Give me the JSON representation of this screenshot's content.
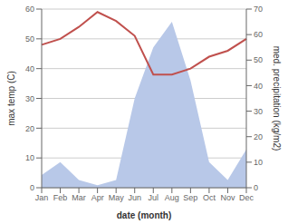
{
  "chart_data": {
    "type": "line",
    "xlabel": "date (month)",
    "ylabel": "max temp (C)",
    "y2label": "med. precipitation (kg/m2)",
    "categories": [
      "Jan",
      "Feb",
      "Mar",
      "Apr",
      "May",
      "Jun",
      "Jul",
      "Aug",
      "Sep",
      "Oct",
      "Nov",
      "Dec"
    ],
    "series": [
      {
        "type": "area",
        "axis": "y2",
        "color": "#b8c8e8",
        "values": [
          5,
          10,
          3,
          1,
          3,
          35,
          55,
          65,
          42,
          10,
          3,
          15
        ]
      },
      {
        "type": "line",
        "color": "#c0504d",
        "values": [
          48,
          50,
          54,
          59,
          56,
          51,
          38,
          38,
          40,
          44,
          46,
          50
        ]
      }
    ],
    "ylim": [
      0,
      60
    ],
    "yticks": [
      0,
      10,
      20,
      30,
      40,
      50,
      60
    ],
    "y2lim": [
      0,
      70
    ],
    "y2ticks": [
      0,
      10,
      20,
      30,
      40,
      50,
      60,
      70
    ],
    "grid": "y"
  }
}
